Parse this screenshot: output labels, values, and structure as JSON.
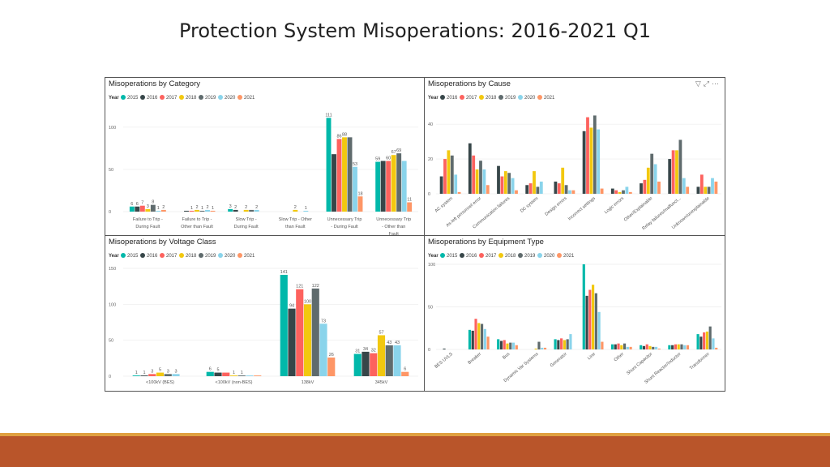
{
  "slide": {
    "title": "Protection System Misoperations:  2016-2021 Q1"
  },
  "colors": {
    "footer": "#b9552a",
    "accent_line": "#e0a040"
  },
  "toolbar_icons": [
    "filter-icon",
    "expand-icon",
    "more-options-icon"
  ],
  "chart_data": [
    {
      "id": "category",
      "type": "bar",
      "title": "Misoperations by Category",
      "legend_title": "Year",
      "legend_position": "top-left",
      "ylim": [
        0,
        120
      ],
      "yticks": [
        0,
        50,
        100
      ],
      "grid": true,
      "categories": [
        "Failure to Trip - During Fault",
        "Failure to Trip - Other than Fault",
        "Slow Trip - During Fault",
        "Slow Trip - Other than Fault",
        "Unnecessary Trip - During Fault",
        "Unnecessary Trip - Other than Fault"
      ],
      "series": [
        {
          "name": "2015",
          "color": "#01b8aa",
          "values": [
            6,
            null,
            3,
            null,
            111,
            59
          ]
        },
        {
          "name": "2016",
          "color": "#374649",
          "values": [
            6,
            1,
            2,
            null,
            68,
            60
          ]
        },
        {
          "name": "2017",
          "color": "#fd625e",
          "values": [
            7,
            1,
            null,
            null,
            86,
            60
          ]
        },
        {
          "name": "2018",
          "color": "#f2c80f",
          "values": [
            3,
            2,
            2,
            2,
            88,
            67
          ]
        },
        {
          "name": "2019",
          "color": "#5f6b6d",
          "values": [
            8,
            1,
            2,
            null,
            88,
            69
          ]
        },
        {
          "name": "2020",
          "color": "#8ad4eb",
          "values": [
            1,
            2,
            2,
            1,
            53,
            60
          ]
        },
        {
          "name": "2021",
          "color": "#fe9666",
          "values": [
            2,
            1,
            null,
            null,
            18,
            11
          ]
        }
      ],
      "value_labels": [
        [
          "6",
          "",
          "3",
          "",
          "111",
          "59"
        ],
        [
          "6",
          "",
          "2",
          "",
          "",
          ""
        ],
        [
          "7",
          "1",
          "",
          "",
          "86",
          "60"
        ],
        [
          "3",
          "2",
          "2",
          "2",
          "88",
          "67"
        ],
        [
          "8",
          "1",
          "",
          "",
          "",
          "69"
        ],
        [
          "1",
          "2",
          "2",
          "1",
          "53",
          ""
        ],
        [
          "2",
          "1",
          "",
          "",
          "18",
          "11"
        ]
      ]
    },
    {
      "id": "cause",
      "type": "bar",
      "title": "Misoperations by Cause",
      "legend_title": "Year",
      "legend_position": "top-left",
      "ylim": [
        0,
        48
      ],
      "yticks": [
        0,
        20,
        40
      ],
      "grid": true,
      "categories": [
        "AC system",
        "As-left personnel error",
        "Communication failures",
        "DC system",
        "Design errors",
        "Incorrect settings",
        "Logic errors",
        "Other/Explainable",
        "Relay failures/malfunct...",
        "Unknown/unexplainable"
      ],
      "series": [
        {
          "name": "2016",
          "color": "#374649",
          "values": [
            10,
            29,
            16,
            5,
            7,
            36,
            3,
            6,
            20,
            4
          ]
        },
        {
          "name": "2017",
          "color": "#fd625e",
          "values": [
            20,
            22,
            10,
            6,
            6,
            44,
            2,
            8,
            25,
            11
          ]
        },
        {
          "name": "2018",
          "color": "#f2c80f",
          "values": [
            25,
            14,
            13,
            13,
            15,
            38,
            1,
            15,
            25,
            4
          ]
        },
        {
          "name": "2019",
          "color": "#5f6b6d",
          "values": [
            22,
            19,
            12,
            4,
            5,
            45,
            2,
            23,
            31,
            4
          ]
        },
        {
          "name": "2020",
          "color": "#8ad4eb",
          "values": [
            11,
            14,
            9,
            7,
            2,
            37,
            4,
            17,
            9,
            9
          ]
        },
        {
          "name": "2021",
          "color": "#fe9666",
          "values": [
            1,
            5,
            2,
            0,
            2,
            3,
            1,
            7,
            4,
            7
          ]
        }
      ]
    },
    {
      "id": "voltage",
      "type": "bar",
      "title": "Misoperations by Voltage Class",
      "legend_title": "Year",
      "legend_position": "top-left",
      "ylim": [
        0,
        150
      ],
      "yticks": [
        0,
        50,
        100,
        150
      ],
      "grid": true,
      "categories": [
        "<100kV (BES)",
        "<100kV (non-BES)",
        "138kV",
        "345kV"
      ],
      "series": [
        {
          "name": "2015",
          "color": "#01b8aa",
          "values": [
            1,
            6,
            141,
            31
          ]
        },
        {
          "name": "2016",
          "color": "#374649",
          "values": [
            1,
            5,
            94,
            34
          ]
        },
        {
          "name": "2017",
          "color": "#fd625e",
          "values": [
            3,
            5,
            121,
            32
          ]
        },
        {
          "name": "2018",
          "color": "#f2c80f",
          "values": [
            5,
            1,
            100,
            57
          ]
        },
        {
          "name": "2019",
          "color": "#5f6b6d",
          "values": [
            3,
            1,
            122,
            43
          ]
        },
        {
          "name": "2020",
          "color": "#8ad4eb",
          "values": [
            3,
            1,
            73,
            43
          ]
        },
        {
          "name": "2021",
          "color": "#fe9666",
          "values": [
            null,
            1,
            26,
            6
          ]
        }
      ],
      "value_labels": [
        [
          "1",
          "6",
          "141",
          "31"
        ],
        [
          "1",
          "5",
          "94",
          "34"
        ],
        [
          "3",
          "",
          "121",
          "32"
        ],
        [
          "5",
          "1",
          "100",
          "57"
        ],
        [
          "3",
          "1",
          "122",
          "43"
        ],
        [
          "3",
          "",
          "73",
          "43"
        ],
        [
          "",
          "",
          "26",
          "6"
        ]
      ]
    },
    {
      "id": "equipment",
      "type": "bar",
      "title": "Misoperations by Equipment Type",
      "legend_title": "Year",
      "legend_position": "top-left",
      "ylim": [
        0,
        100
      ],
      "yticks": [
        0,
        50,
        100
      ],
      "grid": true,
      "categories": [
        "BES UVLS",
        "Breaker",
        "Bus",
        "Dynamic Var Systems",
        "Generator",
        "Line",
        "Other",
        "Shunt Capacitor",
        "Shunt Reactor/Inductor",
        "Transformer"
      ],
      "series": [
        {
          "name": "2015",
          "color": "#01b8aa",
          "values": [
            0,
            23,
            12,
            0,
            12,
            100,
            6,
            5,
            5,
            18
          ]
        },
        {
          "name": "2016",
          "color": "#374649",
          "values": [
            1,
            22,
            10,
            0,
            11,
            63,
            6,
            4,
            5,
            15
          ]
        },
        {
          "name": "2017",
          "color": "#fd625e",
          "values": [
            0,
            36,
            11,
            0,
            13,
            70,
            7,
            6,
            6,
            20
          ]
        },
        {
          "name": "2018",
          "color": "#f2c80f",
          "values": [
            0,
            31,
            7,
            1,
            11,
            76,
            5,
            4,
            6,
            21
          ]
        },
        {
          "name": "2019",
          "color": "#5f6b6d",
          "values": [
            0,
            30,
            8,
            9,
            12,
            66,
            7,
            3,
            6,
            27
          ]
        },
        {
          "name": "2020",
          "color": "#8ad4eb",
          "values": [
            0,
            24,
            8,
            2,
            18,
            44,
            3,
            3,
            5,
            13
          ]
        },
        {
          "name": "2021",
          "color": "#fe9666",
          "values": [
            0,
            15,
            5,
            2,
            0,
            9,
            3,
            1,
            5,
            2
          ]
        }
      ]
    }
  ]
}
